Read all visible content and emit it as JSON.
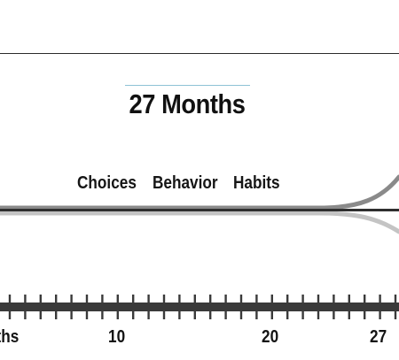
{
  "header": {
    "title": "27 Months"
  },
  "stages": [
    {
      "label": "Choices"
    },
    {
      "label": "Behavior"
    },
    {
      "label": "Habits"
    }
  ],
  "timeline": {
    "labels": [
      "nths",
      "10",
      "20",
      "27"
    ]
  },
  "colors": {
    "title_underline": "#8ec3d6",
    "main_line": "#2f2f2f",
    "upper_curve": "#8a8a8a",
    "lower_curve": "#c4c4c4",
    "axis": "#3a3a3a"
  }
}
